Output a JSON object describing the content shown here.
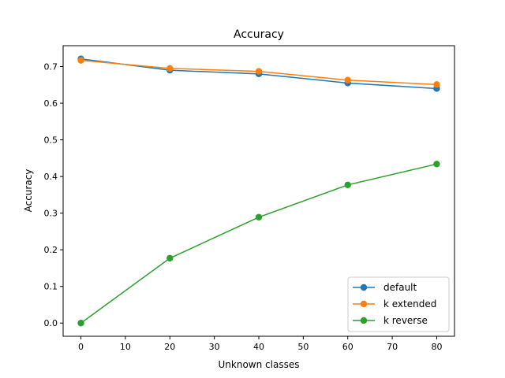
{
  "chart_data": {
    "type": "line",
    "title": "Accuracy",
    "xlabel": "Unknown classes",
    "ylabel": "Accuracy",
    "x": [
      0,
      20,
      40,
      60,
      80
    ],
    "xlim": [
      -4,
      84
    ],
    "ylim": [
      -0.036,
      0.757
    ],
    "xticks": [
      0,
      10,
      20,
      30,
      40,
      50,
      60,
      70,
      80
    ],
    "yticks": [
      0.0,
      0.1,
      0.2,
      0.3,
      0.4,
      0.5,
      0.6,
      0.7
    ],
    "xtick_labels": [
      "0",
      "10",
      "20",
      "30",
      "40",
      "50",
      "60",
      "70",
      "80"
    ],
    "ytick_labels": [
      "0.0",
      "0.1",
      "0.2",
      "0.3",
      "0.4",
      "0.5",
      "0.6",
      "0.7"
    ],
    "grid": false,
    "legend_position": "lower-right",
    "series": [
      {
        "name": "default",
        "color": "#1f77b4",
        "marker": "circle",
        "values": [
          0.721,
          0.69,
          0.68,
          0.655,
          0.64
        ]
      },
      {
        "name": "k extended",
        "color": "#ff7f0e",
        "marker": "circle",
        "values": [
          0.717,
          0.695,
          0.687,
          0.663,
          0.651
        ]
      },
      {
        "name": "k reverse",
        "color": "#2ca02c",
        "marker": "circle",
        "values": [
          0.0,
          0.177,
          0.289,
          0.377,
          0.434
        ]
      }
    ]
  }
}
